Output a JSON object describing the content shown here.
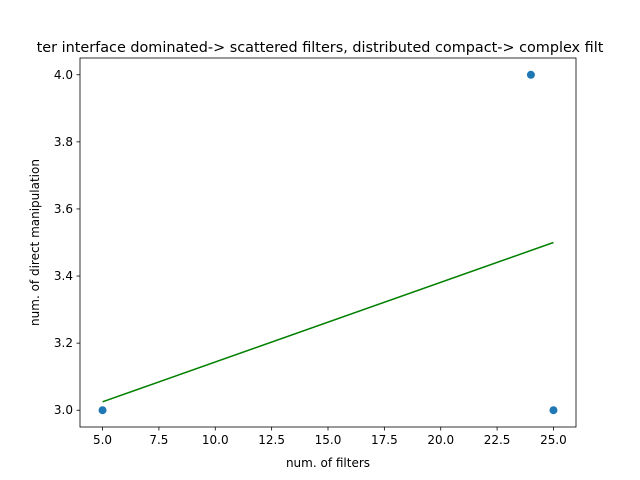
{
  "chart_data": {
    "type": "scatter",
    "title": "ter interface dominated-> scattered filters, distributed compact-> complex filt",
    "xlabel": "num. of filters",
    "ylabel": "num. of direct manipulation",
    "xlim": [
      4.0,
      26.0
    ],
    "ylim": [
      2.95,
      4.05
    ],
    "xticks": [
      5.0,
      7.5,
      10.0,
      12.5,
      15.0,
      17.5,
      20.0,
      22.5,
      25.0
    ],
    "xtick_labels": [
      "5.0",
      "7.5",
      "10.0",
      "12.5",
      "15.0",
      "17.5",
      "20.0",
      "22.5",
      "25.0"
    ],
    "yticks": [
      3.0,
      3.2,
      3.4,
      3.6,
      3.8,
      4.0
    ],
    "ytick_labels": [
      "3.0",
      "3.2",
      "3.4",
      "3.6",
      "3.8",
      "4.0"
    ],
    "grid": false,
    "points": {
      "x": [
        5,
        24,
        25
      ],
      "y": [
        3.0,
        4.0,
        3.0
      ],
      "color": "#1f77b4"
    },
    "trend_line": {
      "x": [
        5,
        25
      ],
      "y": [
        3.025,
        3.5
      ],
      "color": "#008000"
    }
  }
}
